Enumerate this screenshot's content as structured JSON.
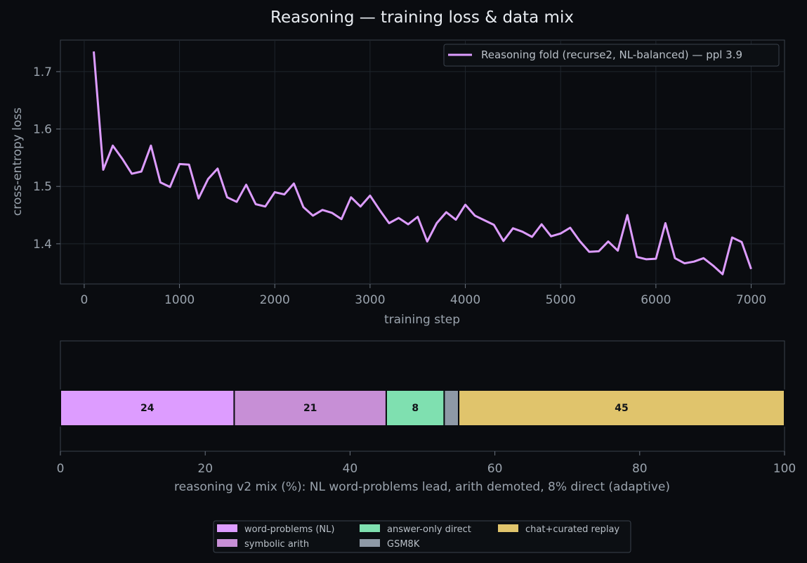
{
  "chart_data": [
    {
      "type": "line",
      "title": "Reasoning — training loss & data mix",
      "xlabel": "training step",
      "ylabel": "cross-entropy loss",
      "xlim": [
        -250,
        7350
      ],
      "ylim": [
        1.33,
        1.755
      ],
      "xticks": [
        0,
        1000,
        2000,
        3000,
        4000,
        5000,
        6000,
        7000
      ],
      "yticks": [
        "1.4",
        "1.5",
        "1.6",
        "1.7"
      ],
      "grid": true,
      "legend_position": "top-right",
      "series": [
        {
          "name": "Reasoning fold (recurse2, NL-balanced) — ppl 3.9",
          "color": "#dd9cff",
          "x": [
            100,
            200,
            300,
            400,
            500,
            600,
            700,
            800,
            900,
            1000,
            1100,
            1200,
            1300,
            1400,
            1500,
            1600,
            1700,
            1800,
            1900,
            2000,
            2100,
            2200,
            2300,
            2400,
            2500,
            2600,
            2700,
            2800,
            2900,
            3000,
            3100,
            3200,
            3300,
            3400,
            3500,
            3600,
            3700,
            3800,
            3900,
            4000,
            4100,
            4200,
            4300,
            4400,
            4500,
            4600,
            4700,
            4800,
            4900,
            5000,
            5100,
            5200,
            5300,
            5400,
            5500,
            5600,
            5700,
            5800,
            5900,
            6000,
            6100,
            6200,
            6300,
            6400,
            6500,
            6600,
            6700,
            6800,
            6900,
            7000
          ],
          "y": [
            1.735,
            1.529,
            1.571,
            1.548,
            1.522,
            1.526,
            1.571,
            1.507,
            1.499,
            1.539,
            1.538,
            1.479,
            1.513,
            1.531,
            1.481,
            1.473,
            1.503,
            1.469,
            1.465,
            1.49,
            1.486,
            1.505,
            1.464,
            1.449,
            1.459,
            1.454,
            1.443,
            1.481,
            1.465,
            1.484,
            1.459,
            1.436,
            1.445,
            1.434,
            1.447,
            1.404,
            1.436,
            1.455,
            1.442,
            1.468,
            1.449,
            1.441,
            1.433,
            1.405,
            1.427,
            1.421,
            1.412,
            1.434,
            1.413,
            1.418,
            1.428,
            1.405,
            1.386,
            1.387,
            1.404,
            1.388,
            1.45,
            1.377,
            1.373,
            1.374,
            1.436,
            1.375,
            1.366,
            1.369,
            1.375,
            1.362,
            1.347,
            1.411,
            1.403,
            1.356
          ]
        }
      ]
    },
    {
      "type": "bar",
      "orientation": "horizontal-stacked",
      "xlabel": "reasoning v2 mix (%): NL word-problems lead, arith demoted, 8% direct (adaptive)",
      "xlim": [
        0,
        100
      ],
      "xticks": [
        0,
        20,
        40,
        60,
        80,
        100
      ],
      "legend_position": "bottom-center",
      "series": [
        {
          "name": "word-problems (NL)",
          "value": 24,
          "label": "24",
          "color": "#dd9cff"
        },
        {
          "name": "symbolic arith",
          "value": 21,
          "label": "21",
          "color": "#c78fd6"
        },
        {
          "name": "answer-only direct",
          "value": 8,
          "label": "8",
          "color": "#7fe0b0"
        },
        {
          "name": "GSM8K",
          "value": 2,
          "label": "",
          "color": "#8e99a6"
        },
        {
          "name": "chat+curated replay",
          "value": 45,
          "label": "45",
          "color": "#e0c46c"
        }
      ],
      "legend_order": [
        0,
        1,
        2,
        3,
        4
      ]
    }
  ]
}
